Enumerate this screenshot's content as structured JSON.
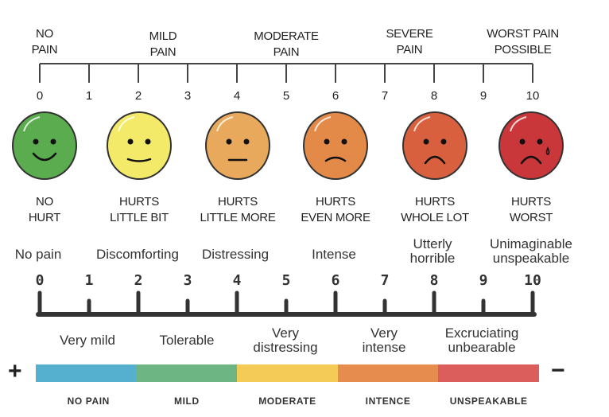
{
  "top_scale": {
    "labels": [
      {
        "line1": "NO",
        "line2": "PAIN",
        "at": 0
      },
      {
        "line1": "MILD",
        "line2": "PAIN",
        "at": 2.5
      },
      {
        "line1": "MODERATE",
        "line2": "PAIN",
        "at": 5
      },
      {
        "line1": "SEVERE",
        "line2": "PAIN",
        "at": 7.5
      },
      {
        "line1": "WORST PAIN",
        "line2": "POSSIBLE",
        "at": 9.8
      }
    ],
    "numbers": [
      "0",
      "1",
      "2",
      "3",
      "4",
      "5",
      "6",
      "7",
      "8",
      "9",
      "10"
    ]
  },
  "faces": [
    {
      "line1": "NO",
      "line2": "HURT",
      "color": "#5aac4f",
      "mouth": "smile"
    },
    {
      "line1": "HURTS",
      "line2": "LITTLE BIT",
      "color": "#f4ea6a",
      "mouth": "small-smile"
    },
    {
      "line1": "HURTS",
      "line2": "LITTLE MORE",
      "color": "#e8a95c",
      "mouth": "flat"
    },
    {
      "line1": "HURTS",
      "line2": "EVEN MORE",
      "color": "#e38a48",
      "mouth": "slight-frown"
    },
    {
      "line1": "HURTS",
      "line2": "WHOLE LOT",
      "color": "#d9603e",
      "mouth": "frown"
    },
    {
      "line1": "HURTS",
      "line2": "WORST",
      "color": "#c9373a",
      "mouth": "frown-tear"
    }
  ],
  "descriptor_scale": {
    "upper_labels": [
      {
        "line1": "No pain",
        "line2": ""
      },
      {
        "line1": "Discomforting",
        "line2": ""
      },
      {
        "line1": "Distressing",
        "line2": ""
      },
      {
        "line1": "Intense",
        "line2": ""
      },
      {
        "line1": "Utterly",
        "line2": "horrible"
      },
      {
        "line1": "Unimaginable",
        "line2": "unspeakable"
      }
    ],
    "numbers": [
      "0",
      "1",
      "2",
      "3",
      "4",
      "5",
      "6",
      "7",
      "8",
      "9",
      "10"
    ],
    "lower_labels": [
      {
        "line1": "Very mild",
        "line2": ""
      },
      {
        "line1": "Tolerable",
        "line2": ""
      },
      {
        "line1": "Very",
        "line2": "distressing"
      },
      {
        "line1": "Very",
        "line2": "intense"
      },
      {
        "line1": "Excruciating",
        "line2": "unbearable"
      }
    ]
  },
  "color_bar": {
    "plus": "+",
    "minus": "−",
    "segments": [
      {
        "label": "NO PAIN",
        "color": "#55b0d0"
      },
      {
        "label": "MILD",
        "color": "#6db583"
      },
      {
        "label": "MODERATE",
        "color": "#f5cb58"
      },
      {
        "label": "INTENCE",
        "color": "#e68c4e"
      },
      {
        "label": "UNSPEAKABLE",
        "color": "#dc5e5c"
      }
    ]
  }
}
